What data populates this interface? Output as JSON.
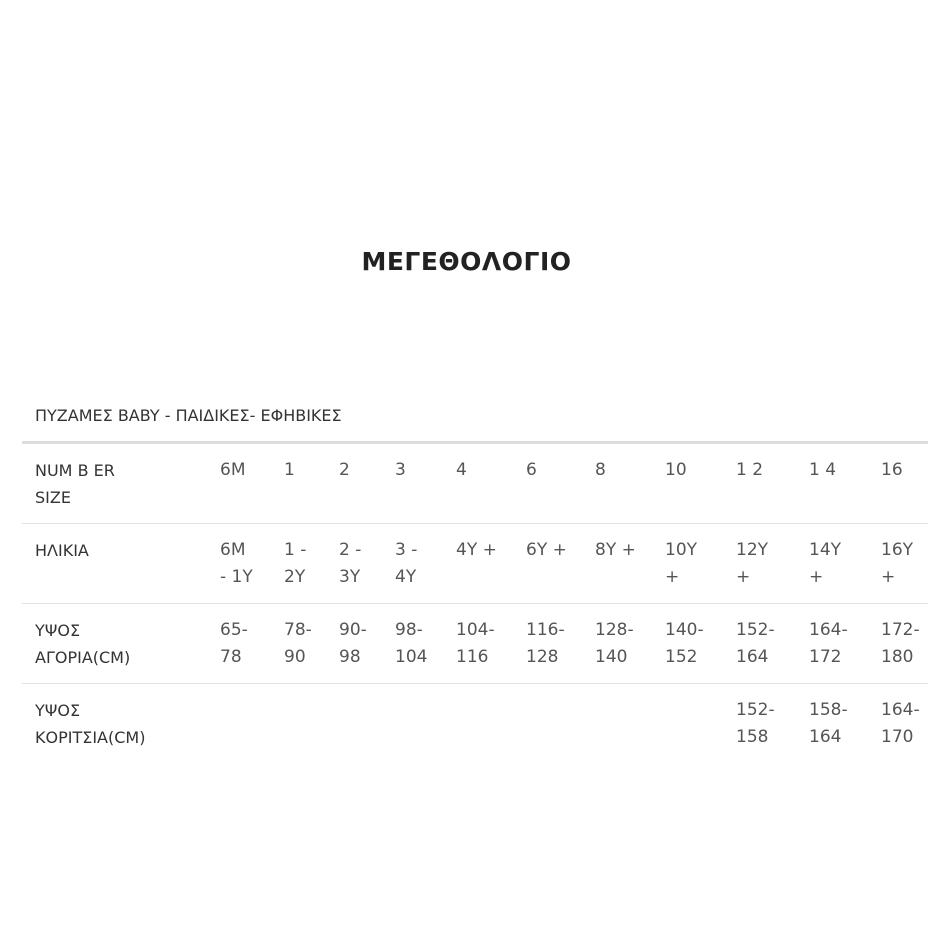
{
  "title": "ΜΕΓΕΘΟΛΟΓΙΟ",
  "subtitle": "ΠΥΖΑΜΕΣ BABY - ΠΑΙΔΙΚΕΣ- ΕΦΗΒΙΚΕΣ",
  "rows": [
    {
      "label": [
        "NUM B ER",
        "SIZE"
      ],
      "values": [
        [
          "6M"
        ],
        [
          "1"
        ],
        [
          "2"
        ],
        [
          "3"
        ],
        [
          "4"
        ],
        [
          "6"
        ],
        [
          "8"
        ],
        [
          "10"
        ],
        [
          "1 2"
        ],
        [
          "1 4"
        ],
        [
          "16"
        ]
      ]
    },
    {
      "label": [
        "ΗΛΙΚΙΑ"
      ],
      "values": [
        [
          "6M",
          "- 1Y"
        ],
        [
          "1 -",
          "2Y"
        ],
        [
          "2 -",
          "3Y"
        ],
        [
          "3 -",
          "4Y"
        ],
        [
          "4Y +"
        ],
        [
          "6Y +"
        ],
        [
          "8Y +"
        ],
        [
          "10Y",
          "+"
        ],
        [
          "12Y",
          "+"
        ],
        [
          "14Y",
          "+"
        ],
        [
          "16Y",
          "+"
        ]
      ]
    },
    {
      "label": [
        "ΥΨΟΣ",
        "ΑΓΟΡΙΑ(CM)"
      ],
      "values": [
        [
          "65-",
          "78"
        ],
        [
          "78-",
          "90"
        ],
        [
          "90-",
          "98"
        ],
        [
          "98-",
          "104"
        ],
        [
          "104-",
          "116"
        ],
        [
          "116-",
          "128"
        ],
        [
          "128-",
          "140"
        ],
        [
          "140-",
          "152"
        ],
        [
          "152-",
          "164"
        ],
        [
          "164-",
          "172"
        ],
        [
          "172-",
          "180"
        ]
      ]
    },
    {
      "label": [
        "ΥΨΟΣ",
        "ΚΟΡΙΤΣΙΑ(CM)"
      ],
      "values": [
        [],
        [],
        [],
        [],
        [],
        [],
        [],
        [],
        [
          "152-",
          "158"
        ],
        [
          "158-",
          "164"
        ],
        [
          "164-",
          "170"
        ]
      ]
    }
  ]
}
